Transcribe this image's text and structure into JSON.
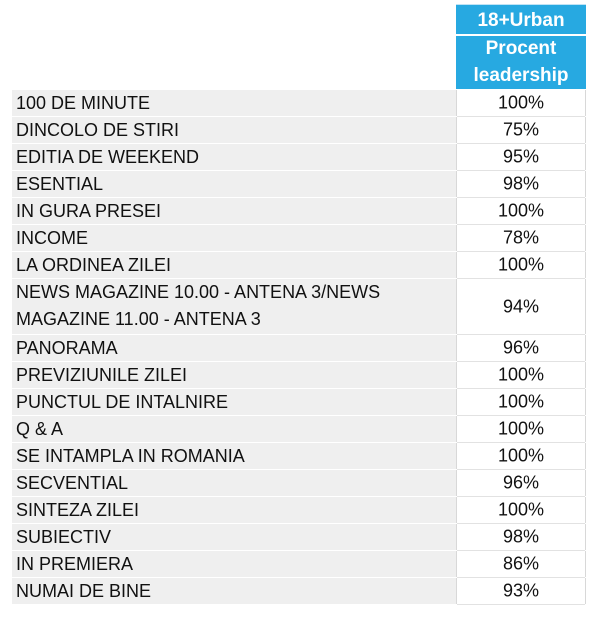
{
  "header": {
    "line1": "18+Urban",
    "line2": "Procent",
    "line3": "leadership"
  },
  "rows": [
    {
      "name": "100 DE MINUTE",
      "value": "100%"
    },
    {
      "name": "DINCOLO DE STIRI",
      "value": "75%"
    },
    {
      "name": "EDITIA DE WEEKEND",
      "value": "95%"
    },
    {
      "name": "ESENTIAL",
      "value": "98%"
    },
    {
      "name": "IN GURA PRESEI",
      "value": "100%"
    },
    {
      "name": "INCOME",
      "value": "78%"
    },
    {
      "name": "LA ORDINEA ZILEI",
      "value": "100%"
    },
    {
      "name": "NEWS MAGAZINE 10.00 - ANTENA 3/NEWS MAGAZINE 11.00 - ANTENA 3",
      "value": "94%"
    },
    {
      "name": "PANORAMA",
      "value": "96%"
    },
    {
      "name": "PREVIZIUNILE ZILEI",
      "value": "100%"
    },
    {
      "name": "PUNCTUL DE INTALNIRE",
      "value": "100%"
    },
    {
      "name": "Q & A",
      "value": "100%"
    },
    {
      "name": "SE INTAMPLA IN ROMANIA",
      "value": "100%"
    },
    {
      "name": "SECVENTIAL",
      "value": "96%"
    },
    {
      "name": "SINTEZA ZILEI",
      "value": "100%"
    },
    {
      "name": "SUBIECTIV",
      "value": "98%"
    },
    {
      "name": "IN PREMIERA",
      "value": "86%"
    },
    {
      "name": "NUMAI DE BINE",
      "value": "93%"
    }
  ]
}
